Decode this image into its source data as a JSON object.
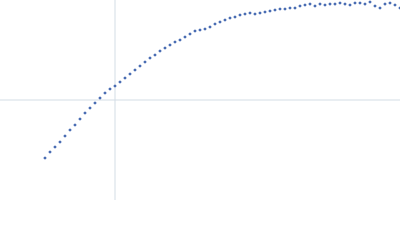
{
  "chart_data": {
    "type": "scatter",
    "color": "#4a6db3",
    "xlim": [
      0,
      400
    ],
    "ylim": [
      0,
      200
    ],
    "x": [
      45,
      50,
      55,
      60,
      65,
      70,
      75,
      80,
      85,
      90,
      95,
      100,
      105,
      110,
      115,
      120,
      125,
      130,
      135,
      140,
      145,
      150,
      155,
      160,
      165,
      170,
      175,
      180,
      185,
      190,
      195,
      200,
      205,
      210,
      215,
      220,
      225,
      230,
      235,
      240,
      245,
      250,
      255,
      260,
      265,
      270,
      275,
      280,
      285,
      290,
      295,
      300,
      305,
      310,
      315,
      320,
      325,
      330,
      335,
      340,
      345,
      350,
      355,
      360,
      365,
      370,
      375,
      380,
      385,
      390,
      395,
      400
    ],
    "values": [
      42,
      48,
      53,
      58,
      64,
      70,
      75,
      81,
      87,
      92,
      97,
      102,
      107,
      111,
      114,
      118,
      122,
      126,
      130,
      134,
      138,
      142,
      145,
      149,
      152,
      155,
      158,
      160,
      163,
      166,
      169,
      170,
      171,
      173,
      176,
      178,
      180,
      182,
      183,
      185,
      186,
      187,
      186,
      187,
      188,
      189,
      190,
      191,
      191,
      192,
      192,
      194,
      195,
      196,
      194,
      196,
      195,
      196,
      196,
      197,
      196,
      195,
      197,
      197,
      196,
      198,
      194,
      192,
      196,
      197,
      195,
      192
    ]
  }
}
